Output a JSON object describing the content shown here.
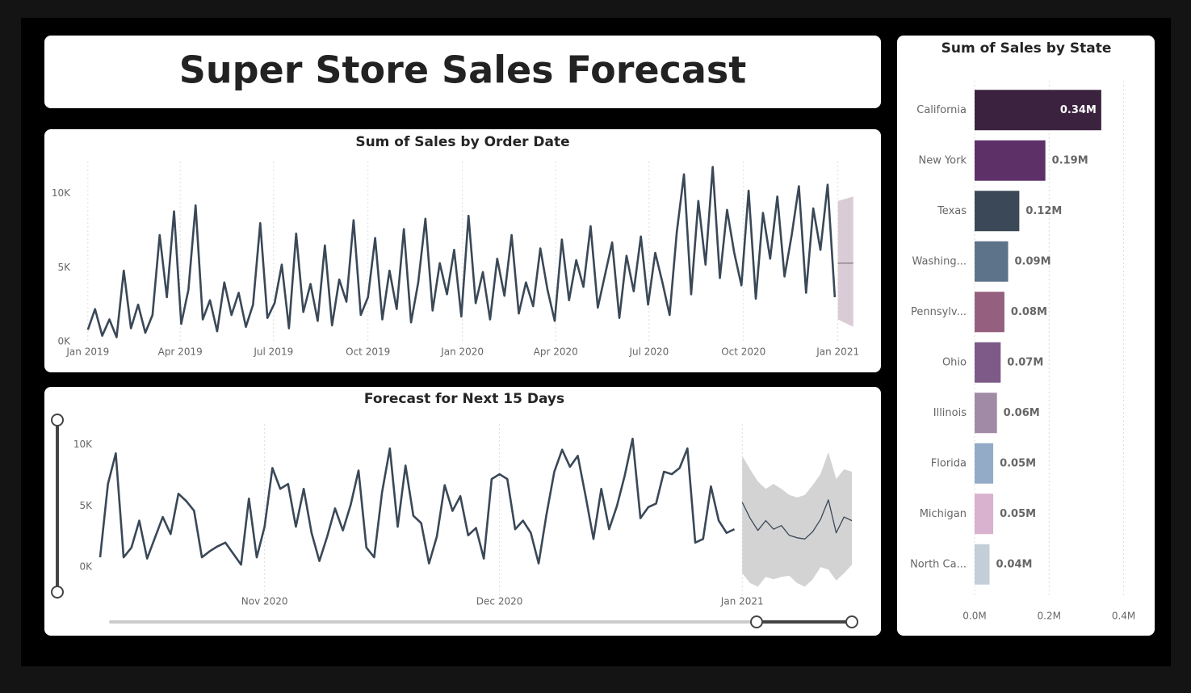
{
  "title": "Super Store Sales Forecast",
  "chart_data": [
    {
      "type": "line",
      "title": "Sum of Sales by Order Date",
      "xlim": [
        -3,
        747
      ],
      "xticks": [
        {
          "value": 0,
          "label": "Jan 2019"
        },
        {
          "value": 90,
          "label": "Apr 2019"
        },
        {
          "value": 181,
          "label": "Jul 2019"
        },
        {
          "value": 273,
          "label": "Oct 2019"
        },
        {
          "value": 365,
          "label": "Jan 2020"
        },
        {
          "value": 456,
          "label": "Apr 2020"
        },
        {
          "value": 547,
          "label": "Jul 2020"
        },
        {
          "value": 639,
          "label": "Oct 2020"
        },
        {
          "value": 731,
          "label": "Jan 2021"
        }
      ],
      "ylim": [
        0,
        12000
      ],
      "yticks": [
        {
          "value": 0,
          "label": "0K"
        },
        {
          "value": 5000,
          "label": "5K"
        },
        {
          "value": 10000,
          "label": "10K"
        }
      ],
      "grid": "x",
      "series": [
        {
          "color": "#3a4857",
          "x": [
            0,
            7,
            14,
            21,
            28,
            35,
            42,
            49,
            56,
            63,
            70,
            77,
            84,
            91,
            98,
            105,
            112,
            119,
            126,
            133,
            140,
            147,
            154,
            161,
            168,
            175,
            182,
            189,
            196,
            203,
            210,
            217,
            224,
            231,
            238,
            245,
            252,
            259,
            266,
            273,
            280,
            287,
            294,
            301,
            308,
            315,
            322,
            329,
            336,
            343,
            350,
            357,
            364,
            371,
            378,
            385,
            392,
            399,
            406,
            413,
            420,
            427,
            434,
            441,
            448,
            455,
            462,
            469,
            476,
            483,
            490,
            497,
            504,
            511,
            518,
            525,
            532,
            539,
            546,
            553,
            560,
            567,
            574,
            581,
            588,
            595,
            602,
            609,
            616,
            623,
            630,
            637,
            644,
            651,
            658,
            665,
            672,
            679,
            686,
            693,
            700,
            707,
            714,
            721,
            728
          ],
          "values": [
            800,
            2200,
            400,
            1500,
            300,
            4800,
            900,
            2500,
            600,
            1800,
            7200,
            3000,
            8800,
            1200,
            3500,
            9200,
            1500,
            2800,
            700,
            4000,
            1800,
            3300,
            1000,
            2500,
            8000,
            1600,
            2600,
            5200,
            900,
            7300,
            2000,
            3900,
            1400,
            6500,
            1100,
            4200,
            2700,
            8200,
            1800,
            3000,
            7000,
            1500,
            4800,
            2200,
            7600,
            1300,
            4000,
            8300,
            2100,
            5300,
            3200,
            6200,
            1700,
            8500,
            2600,
            4700,
            1500,
            5600,
            3100,
            7200,
            1900,
            4000,
            2400,
            6300,
            3500,
            1400,
            6900,
            2800,
            5500,
            3700,
            7800,
            2300,
            4500,
            6700,
            1600,
            5800,
            3400,
            7100,
            2500,
            6000,
            4000,
            1800,
            7400,
            11300,
            3200,
            9500,
            5200,
            11800,
            4300,
            8900,
            6000,
            3800,
            10200,
            2900,
            8700,
            5600,
            9800,
            4400,
            7200,
            10500,
            3300,
            9000,
            6200,
            10600,
            3000
          ]
        },
        {
          "color": "#8a7e88",
          "band_color": "#d9ccd6",
          "x": [
            731,
            746
          ],
          "values": [
            5300,
            5300
          ],
          "lower": [
            1500,
            1000
          ],
          "upper": [
            9500,
            9800
          ]
        }
      ]
    },
    {
      "type": "line",
      "title": "Forecast for Next 15 Days",
      "xlim": [
        -21,
        75
      ],
      "xticks": [
        {
          "value": 0,
          "label": "Nov 2020"
        },
        {
          "value": 30,
          "label": "Dec 2020"
        },
        {
          "value": 61,
          "label": "Jan 2021"
        }
      ],
      "ylim": [
        -2500,
        11500
      ],
      "yticks": [
        {
          "value": 0,
          "label": "0K"
        },
        {
          "value": 5000,
          "label": "5K"
        },
        {
          "value": 10000,
          "label": "10K"
        }
      ],
      "grid": "x",
      "series": [
        {
          "color": "#3a4857",
          "x": [
            -21,
            -20,
            -19,
            -18,
            -17,
            -16,
            -15,
            -14,
            -13,
            -12,
            -11,
            -10,
            -9,
            -8,
            -7,
            -6,
            -5,
            -4,
            -3,
            -2,
            -1,
            0,
            1,
            2,
            3,
            4,
            5,
            6,
            7,
            8,
            9,
            10,
            11,
            12,
            13,
            14,
            15,
            16,
            17,
            18,
            19,
            20,
            21,
            22,
            23,
            24,
            25,
            26,
            27,
            28,
            29,
            30,
            31,
            32,
            33,
            34,
            35,
            36,
            37,
            38,
            39,
            40,
            41,
            42,
            43,
            44,
            45,
            46,
            47,
            48,
            49,
            50,
            51,
            52,
            53,
            54,
            55,
            56,
            57,
            58,
            59,
            60
          ],
          "values": [
            800,
            6800,
            9300,
            800,
            1600,
            3800,
            700,
            2400,
            4100,
            2700,
            6000,
            5400,
            4600,
            800,
            1300,
            1700,
            2000,
            1100,
            200,
            5600,
            800,
            3300,
            8100,
            6400,
            6800,
            3300,
            6400,
            2800,
            500,
            2500,
            4800,
            3000,
            5100,
            7900,
            1600,
            800,
            6100,
            9700,
            3300,
            8300,
            4200,
            3600,
            300,
            2500,
            6700,
            4600,
            5800,
            2600,
            3200,
            700,
            7200,
            7600,
            7200,
            3100,
            3800,
            2800,
            300,
            4300,
            7800,
            9600,
            8200,
            9100,
            5800,
            2300,
            6400,
            3100,
            5000,
            7500,
            10500,
            4000,
            4900,
            5200,
            7800,
            7600,
            8100,
            9700,
            2000,
            2300,
            6600,
            3800,
            2800,
            3100
          ]
        },
        {
          "color": "#3a4857",
          "band_color": "#d3d3d3",
          "x": [
            61,
            62,
            63,
            64,
            65,
            66,
            67,
            68,
            69,
            70,
            71,
            72,
            73,
            74,
            75
          ],
          "values": [
            5300,
            4000,
            3000,
            3800,
            3100,
            3400,
            2600,
            2400,
            2300,
            2900,
            3900,
            5500,
            2800,
            4100,
            3800
          ],
          "lower": [
            -500,
            -1300,
            -1600,
            -800,
            -1000,
            -800,
            -700,
            -1300,
            -1600,
            -1000,
            0,
            -200,
            -1100,
            -500,
            200
          ],
          "upper": [
            9100,
            8000,
            7000,
            6400,
            6800,
            6400,
            5900,
            5700,
            5900,
            6700,
            7600,
            9400,
            7200,
            8000,
            7800
          ]
        }
      ]
    },
    {
      "type": "barh",
      "title": "Sum of Sales by State",
      "categories": [
        "California",
        "New York",
        "Texas",
        "Washing...",
        "Pennsylv...",
        "Ohio",
        "Illinois",
        "Florida",
        "Michigan",
        "North Ca..."
      ],
      "values": [
        340000,
        190000,
        120000,
        90000,
        80000,
        70000,
        60000,
        50000,
        50000,
        40000
      ],
      "value_labels": [
        "0.34M",
        "0.19M",
        "0.12M",
        "0.09M",
        "0.08M",
        "0.07M",
        "0.06M",
        "0.05M",
        "0.05M",
        "0.04M"
      ],
      "colors": [
        "#3b2340",
        "#5e3068",
        "#3a4857",
        "#5d7389",
        "#955f7f",
        "#7e5a88",
        "#a18aa6",
        "#93abc6",
        "#d8b2ce",
        "#c3ced8"
      ],
      "xlim": [
        0,
        440000
      ],
      "xticks": [
        {
          "value": 0,
          "label": "0.0M"
        },
        {
          "value": 200000,
          "label": "0.2M"
        },
        {
          "value": 400000,
          "label": "0.4M"
        }
      ],
      "grid": "x"
    }
  ]
}
